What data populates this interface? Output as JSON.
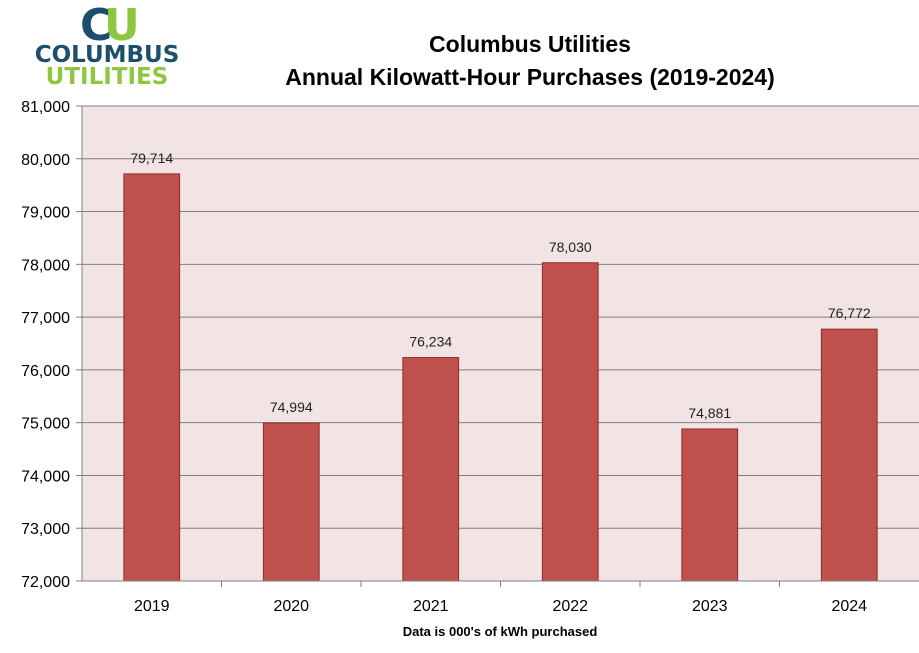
{
  "logo": {
    "letters_c": "C",
    "letters_u": "U",
    "line1": "COLUMBUS",
    "line2": "UTILITIES",
    "colors": {
      "dark": "#1b4f6b",
      "green": "#8dc63f"
    }
  },
  "chart_data": {
    "type": "bar",
    "title": "Columbus Utilities",
    "subtitle": "Annual Kilowatt-Hour Purchases (2019-2024)",
    "xlabel": "Data is 000's of kWh purchased",
    "ylabel": "",
    "categories": [
      "2019",
      "2020",
      "2021",
      "2022",
      "2023",
      "2024"
    ],
    "values": [
      79714,
      74994,
      76234,
      78030,
      74881,
      76772
    ],
    "data_labels": [
      "79,714",
      "74,994",
      "76,234",
      "78,030",
      "74,881",
      "76,772"
    ],
    "ylim": [
      72000,
      81000
    ],
    "yticks": [
      72000,
      73000,
      74000,
      75000,
      76000,
      77000,
      78000,
      79000,
      80000,
      81000
    ],
    "ytick_labels": [
      "72,000",
      "73,000",
      "74,000",
      "75,000",
      "76,000",
      "77,000",
      "78,000",
      "79,000",
      "80,000",
      "81,000"
    ],
    "grid": true,
    "legend": "none",
    "colors": {
      "bar": "#c0504d",
      "bar_edge": "#8c2f2c",
      "plot_bg": "#f2e4e4",
      "grid": "#7f7f7f"
    }
  }
}
